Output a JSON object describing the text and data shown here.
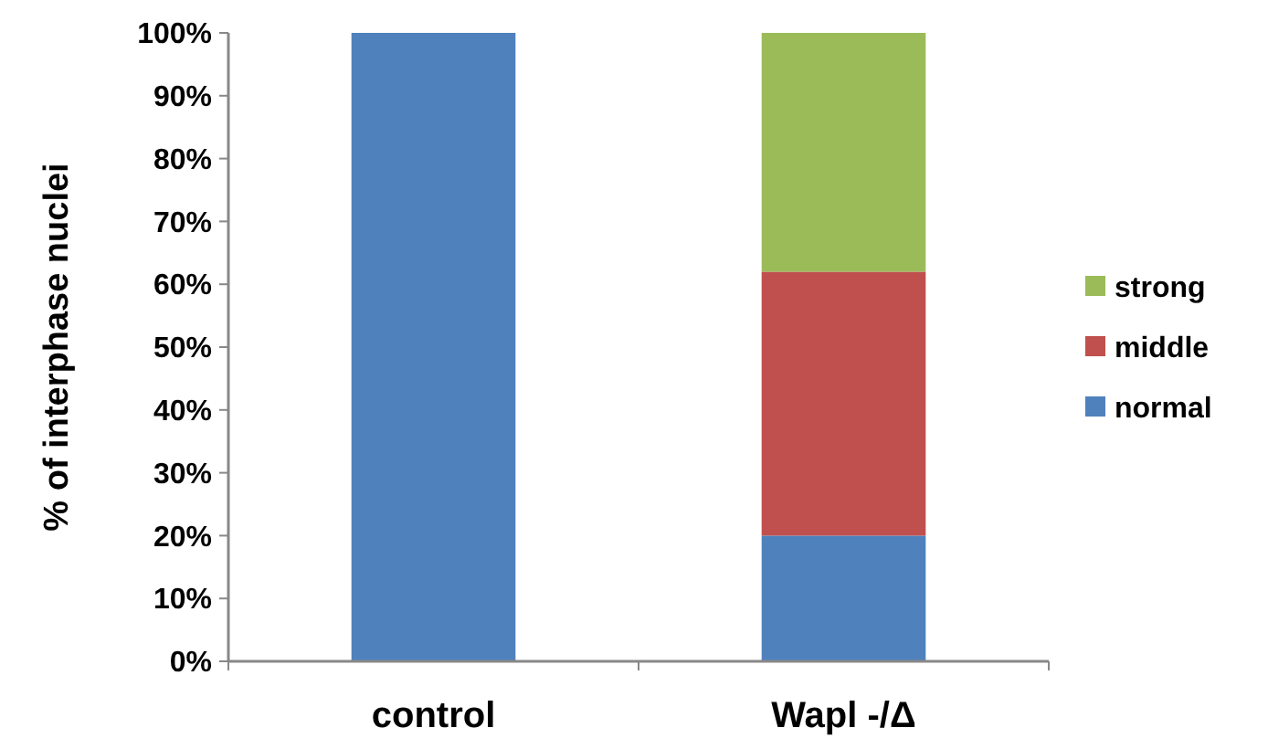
{
  "chart_data": {
    "type": "bar",
    "stacked": true,
    "ylabel": "% of interphase nuclei",
    "categories": [
      "control",
      "Wapl -/Δ"
    ],
    "series": [
      {
        "name": "normal",
        "color": "#4f81bd",
        "values": [
          100,
          20
        ]
      },
      {
        "name": "middle",
        "color": "#c0504d",
        "values": [
          0,
          42
        ]
      },
      {
        "name": "strong",
        "color": "#9bbb59",
        "values": [
          0,
          38
        ]
      }
    ],
    "ylim": [
      0,
      100
    ],
    "yticks": [
      {
        "value": 0,
        "label": "0%"
      },
      {
        "value": 10,
        "label": "10%"
      },
      {
        "value": 20,
        "label": "20%"
      },
      {
        "value": 30,
        "label": "30%"
      },
      {
        "value": 40,
        "label": "40%"
      },
      {
        "value": 50,
        "label": "50%"
      },
      {
        "value": 60,
        "label": "60%"
      },
      {
        "value": 70,
        "label": "70%"
      },
      {
        "value": 80,
        "label": "80%"
      },
      {
        "value": 90,
        "label": "90%"
      },
      {
        "value": 100,
        "label": "100%"
      }
    ],
    "legend": "right",
    "grid": false
  }
}
